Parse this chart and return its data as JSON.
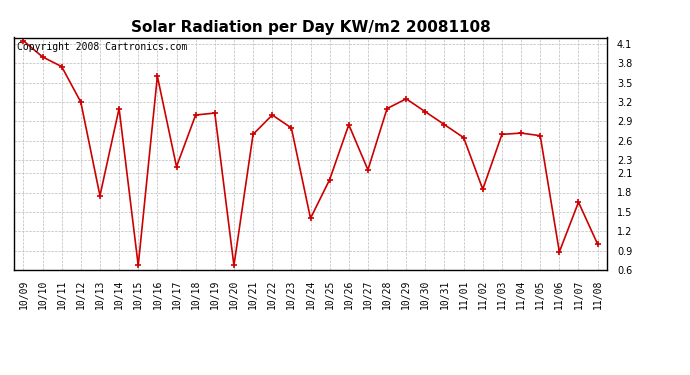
{
  "title": "Solar Radiation per Day KW/m2 20081108",
  "copyright_text": "Copyright 2008 Cartronics.com",
  "dates": [
    "10/09",
    "10/10",
    "10/11",
    "10/12",
    "10/13",
    "10/14",
    "10/15",
    "10/16",
    "10/17",
    "10/18",
    "10/19",
    "10/20",
    "10/21",
    "10/22",
    "10/23",
    "10/24",
    "10/25",
    "10/26",
    "10/27",
    "10/28",
    "10/29",
    "10/30",
    "10/31",
    "11/01",
    "11/02",
    "11/03",
    "11/04",
    "11/05",
    "11/06",
    "11/07",
    "11/08"
  ],
  "values": [
    4.15,
    3.9,
    3.75,
    3.2,
    1.75,
    3.1,
    0.67,
    3.6,
    2.2,
    3.0,
    3.03,
    0.67,
    2.7,
    3.0,
    2.8,
    1.4,
    2.0,
    2.85,
    2.15,
    3.1,
    3.25,
    3.05,
    2.85,
    2.65,
    1.85,
    2.7,
    2.72,
    2.68,
    0.88,
    1.65,
    1.0
  ],
  "line_color": "#cc0000",
  "marker_color": "#cc0000",
  "bg_color": "#ffffff",
  "grid_color": "#bbbbbb",
  "ylim": [
    0.6,
    4.2
  ],
  "yticks": [
    0.6,
    0.9,
    1.2,
    1.5,
    1.8,
    2.1,
    2.3,
    2.6,
    2.9,
    3.2,
    3.5,
    3.8,
    4.1
  ],
  "title_fontsize": 11,
  "tick_fontsize": 7,
  "copyright_fontsize": 7
}
